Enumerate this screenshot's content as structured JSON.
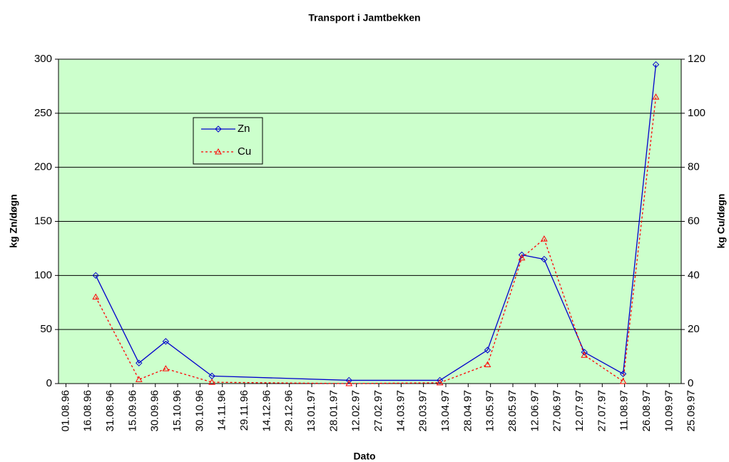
{
  "chart_data": {
    "type": "line",
    "title": "Transport  i Jamtbekken",
    "xlabel": "Dato",
    "ylabel": "kg Zn/døgn",
    "y2label": "kg Cu/døgn",
    "x": [
      "1996-08-21",
      "1996-09-19",
      "1996-10-07",
      "1996-11-07",
      "1997-02-07",
      "1997-04-09",
      "1997-05-11",
      "1997-06-03",
      "1997-06-18",
      "1997-07-15",
      "1997-08-10",
      "1997-09-01"
    ],
    "series": [
      {
        "name": "Zn",
        "color": "#0000cc",
        "values": [
          100,
          19,
          39,
          7,
          3,
          3,
          31,
          119,
          115,
          29,
          9,
          295
        ]
      },
      {
        "name": "Cu",
        "color": "#ff0000",
        "axis": "y2",
        "values": [
          32,
          1.5,
          5.5,
          0.5,
          0,
          0.3,
          7,
          46.5,
          53.5,
          10.5,
          0.8,
          106
        ]
      }
    ],
    "xlim": [
      "1996-07-27",
      "1997-09-18"
    ],
    "xticks": [
      {
        "value": "1996-08-01",
        "label": "01.08.96"
      },
      {
        "value": "1996-08-16",
        "label": "16.08.96"
      },
      {
        "value": "1996-08-31",
        "label": "31.08.96"
      },
      {
        "value": "1996-09-15",
        "label": "15.09.96"
      },
      {
        "value": "1996-09-30",
        "label": "30.09.96"
      },
      {
        "value": "1996-10-15",
        "label": "15.10.96"
      },
      {
        "value": "1996-10-30",
        "label": "30.10.96"
      },
      {
        "value": "1996-11-14",
        "label": "14.11.96"
      },
      {
        "value": "1996-11-29",
        "label": "29.11.96"
      },
      {
        "value": "1996-12-14",
        "label": "14.12.96"
      },
      {
        "value": "1996-12-29",
        "label": "29.12.96"
      },
      {
        "value": "1997-01-13",
        "label": "13.01.97"
      },
      {
        "value": "1997-01-28",
        "label": "28.01.97"
      },
      {
        "value": "1997-02-12",
        "label": "12.02.97"
      },
      {
        "value": "1997-02-27",
        "label": "27.02.97"
      },
      {
        "value": "1997-03-14",
        "label": "14.03.97"
      },
      {
        "value": "1997-03-29",
        "label": "29.03.97"
      },
      {
        "value": "1997-04-13",
        "label": "13.04.97"
      },
      {
        "value": "1997-04-28",
        "label": "28.04.97"
      },
      {
        "value": "1997-05-13",
        "label": "13.05.97"
      },
      {
        "value": "1997-05-28",
        "label": "28.05.97"
      },
      {
        "value": "1997-06-12",
        "label": "12.06.97"
      },
      {
        "value": "1997-06-27",
        "label": "27.06.97"
      },
      {
        "value": "1997-07-12",
        "label": "12.07.97"
      },
      {
        "value": "1997-07-27",
        "label": "27.07.97"
      },
      {
        "value": "1997-08-11",
        "label": "11.08.97"
      },
      {
        "value": "1997-08-26",
        "label": "26.08.97"
      },
      {
        "value": "1997-09-10",
        "label": "10.09.97"
      },
      {
        "value": "1997-09-25",
        "label": "25.09.97"
      }
    ],
    "ylim": [
      0,
      300
    ],
    "yticks": [
      0,
      50,
      100,
      150,
      200,
      250,
      300
    ],
    "y2lim": [
      0,
      120
    ],
    "y2ticks": [
      0,
      20,
      40,
      60,
      80,
      100,
      120
    ],
    "grid": true,
    "background": "#ccffcc",
    "legend": "upper left"
  }
}
